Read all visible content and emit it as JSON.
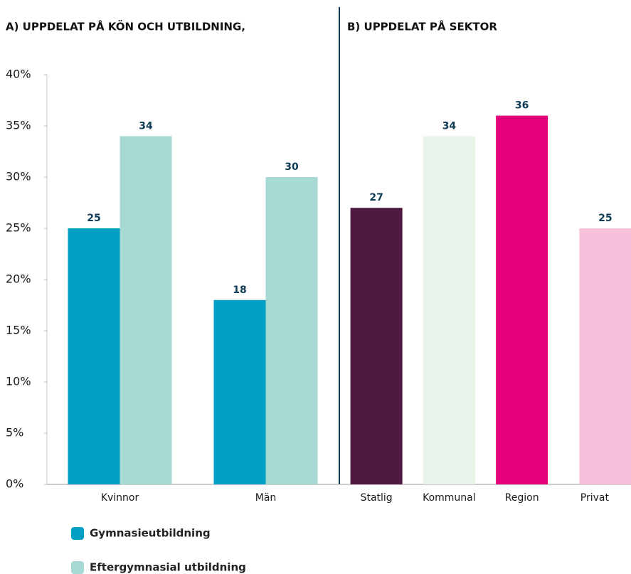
{
  "chart_data": [
    {
      "type": "bar",
      "title": "A) UPPDELAT PÅ KÖN OCH UTBILDNING,",
      "categories": [
        "Kvinnor",
        "Män"
      ],
      "series": [
        {
          "name": "Gymnasieutbildning",
          "color": "#009fc6",
          "values": [
            25,
            18
          ]
        },
        {
          "name": "Eftergymnasial utbildning",
          "color": "#a6d8d4",
          "values": [
            34,
            30
          ]
        }
      ],
      "ylim": [
        0,
        40
      ],
      "yticks": [
        {
          "value": 0,
          "label": "0%"
        },
        {
          "value": 5,
          "label": "5%"
        },
        {
          "value": 10,
          "label": "10%"
        },
        {
          "value": 15,
          "label": "15%"
        },
        {
          "value": 20,
          "label": "20%"
        },
        {
          "value": 25,
          "label": "25%"
        },
        {
          "value": 30,
          "label": "30%"
        },
        {
          "value": 35,
          "label": "35%"
        },
        {
          "value": 40,
          "label": "40%"
        }
      ]
    },
    {
      "type": "bar",
      "title": "B) UPPDELAT PÅ SEKTOR",
      "categories": [
        "Statlig",
        "Kommunal",
        "Region",
        "Privat"
      ],
      "values": [
        27,
        34,
        36,
        25
      ],
      "colors": [
        "#4f1a41",
        "#e9f3ea",
        "#e5007a",
        "#f7c1dc"
      ],
      "ylim": [
        0,
        40
      ]
    }
  ]
}
